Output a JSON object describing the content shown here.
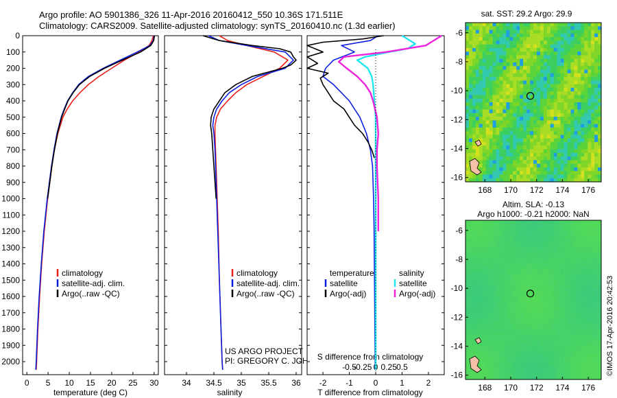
{
  "header": {
    "line1": "Argo profile: AO 5901386_326 11-Apr-2016 20160412_550 10.36S 171.511E",
    "line2": "Climatology: CARS2009. Satellite-adjusted climatology: synTS_20160410.nc (1.3d earlier)"
  },
  "colors": {
    "red": "#e8201a",
    "blue": "#0a1ee0",
    "black": "#000000",
    "cyan": "#22e6ee",
    "magenta": "#ee22dd"
  },
  "chart_data": [
    {
      "type": "line",
      "title": "",
      "xlabel": "temperature (deg C)",
      "ylabel": "",
      "xlim": [
        -1,
        31
      ],
      "ylim": [
        2080,
        0
      ],
      "x_ticks": [
        0,
        5,
        10,
        15,
        20,
        25,
        30
      ],
      "y_ticks": [
        0,
        100,
        200,
        300,
        400,
        500,
        600,
        700,
        800,
        900,
        1000,
        1100,
        1200,
        1300,
        1400,
        1500,
        1600,
        1700,
        1800,
        1900,
        2000
      ],
      "legend": [
        "climatology",
        "satellite-adj. clim.",
        "Argo(..raw -QC)"
      ],
      "series": [
        {
          "name": "climatology",
          "color": "red",
          "depth": [
            0,
            30,
            60,
            100,
            150,
            200,
            250,
            300,
            350,
            400,
            450,
            500,
            600,
            700,
            800,
            1000,
            1200,
            1400,
            1600,
            1800,
            2000,
            2050
          ],
          "values": [
            29.8,
            29.5,
            28.8,
            26.5,
            23,
            20,
            17,
            14.5,
            12.5,
            10.8,
            9.5,
            8.5,
            7.3,
            6.5,
            5.9,
            4.9,
            4.1,
            3.5,
            3.0,
            2.6,
            2.3,
            2.2
          ]
        },
        {
          "name": "satellite-adj. clim.",
          "color": "blue",
          "depth": [
            0,
            30,
            60,
            100,
            150,
            200,
            250,
            300,
            350,
            400,
            450,
            500,
            600,
            700,
            800,
            1000,
            1200,
            1400,
            1600,
            1800,
            2000,
            2050
          ],
          "values": [
            30,
            29.8,
            29,
            26,
            22,
            18,
            14.5,
            12.2,
            10.8,
            9.6,
            8.8,
            8.1,
            7.1,
            6.4,
            5.8,
            4.8,
            4.0,
            3.4,
            2.9,
            2.5,
            2.2,
            2.1
          ]
        },
        {
          "name": "Argo(..raw -QC)",
          "color": "black",
          "depth": [
            0,
            30,
            60,
            100,
            150,
            200,
            250,
            300,
            350,
            400,
            450,
            500,
            600,
            700,
            800,
            1000
          ],
          "values": [
            30.1,
            29.9,
            29.2,
            26.8,
            22.5,
            18.3,
            14.8,
            12.4,
            10.9,
            9.7,
            8.9,
            8.2,
            7.2,
            6.5,
            5.9,
            4.9
          ]
        }
      ]
    },
    {
      "type": "line",
      "title": "",
      "xlabel": "salinity",
      "ylabel": "",
      "xlim": [
        33.6,
        36.1
      ],
      "ylim": [
        2080,
        0
      ],
      "x_ticks": [
        34,
        34.5,
        35,
        35.5,
        36
      ],
      "legend": [
        "climatology",
        "satellite-adj. clim.",
        "Argo(..raw -QC)"
      ],
      "series": [
        {
          "name": "climatology",
          "color": "red",
          "depth": [
            0,
            30,
            60,
            100,
            150,
            200,
            250,
            300,
            350,
            400,
            450,
            500,
            550,
            600,
            700,
            800,
            1000,
            1200,
            1500,
            1800,
            2000,
            2050
          ],
          "values": [
            34.6,
            34.75,
            35.1,
            35.6,
            35.85,
            35.7,
            35.4,
            35.1,
            34.9,
            34.75,
            34.62,
            34.55,
            34.52,
            34.52,
            34.53,
            34.54,
            34.56,
            34.58,
            34.6,
            34.63,
            34.65,
            34.66
          ]
        },
        {
          "name": "satellite-adj. clim.",
          "color": "blue",
          "depth": [
            0,
            30,
            60,
            100,
            150,
            200,
            250,
            300,
            350,
            400,
            450,
            500,
            550,
            600,
            700,
            800,
            1000,
            1200,
            1500,
            1800,
            2000,
            2050
          ],
          "values": [
            34.4,
            34.6,
            35.1,
            35.8,
            35.95,
            35.8,
            35.3,
            35.0,
            34.78,
            34.65,
            34.55,
            34.5,
            34.48,
            34.5,
            34.52,
            34.53,
            34.55,
            34.57,
            34.6,
            34.63,
            34.65,
            34.66
          ]
        },
        {
          "name": "Argo(..raw -QC)",
          "color": "black",
          "depth": [
            0,
            30,
            60,
            80,
            100,
            130,
            150,
            180,
            200,
            250,
            300,
            350,
            400,
            450,
            500,
            550,
            600,
            700,
            800,
            900,
            1000
          ],
          "values": [
            34.3,
            34.6,
            35.2,
            35.7,
            35.9,
            35.95,
            36.0,
            35.9,
            35.75,
            35.2,
            34.9,
            34.7,
            34.6,
            34.5,
            34.45,
            34.44,
            34.46,
            34.48,
            34.5,
            34.52,
            34.54
          ]
        }
      ]
    },
    {
      "type": "line",
      "title": "",
      "xlabel": "T difference from climatology",
      "xlabel_top": "S difference from climatology",
      "xlim": [
        -2.6,
        2.6
      ],
      "ylim": [
        2080,
        0
      ],
      "x_ticks_bottom": [
        -2,
        -1,
        0,
        1,
        2
      ],
      "x_ticks_top": [
        "-0.5",
        "-0.25",
        "0",
        "0.25",
        "0.5"
      ],
      "legend": {
        "temperature": "temperature",
        "salinity": "salinity",
        "temp_sat": "satellite",
        "temp_argo": "Argo(-adj)",
        "sal_sat": "satellite",
        "sal_argo": "Argo(-adj)"
      },
      "series": [
        {
          "name": "temperature satellite",
          "color": "blue",
          "depth": [
            0,
            30,
            60,
            100,
            150,
            200,
            250,
            300,
            350,
            400,
            500,
            600,
            700,
            800,
            1000,
            1200,
            1400,
            1600,
            1800,
            2000,
            2050
          ],
          "values": [
            0.1,
            -0.2,
            -1.3,
            -0.8,
            -1.6,
            -1.9,
            -2.0,
            -1.6,
            -1.3,
            -1.0,
            -0.6,
            -0.35,
            -0.2,
            -0.12,
            -0.08,
            -0.06,
            -0.05,
            -0.04,
            -0.03,
            -0.02,
            -0.02
          ]
        },
        {
          "name": "temperature Argo(-adj)",
          "color": "black",
          "depth": [
            0,
            20,
            40,
            60,
            80,
            100,
            130,
            150,
            170,
            200,
            230,
            260,
            300,
            350,
            400,
            450,
            500,
            550,
            600,
            650,
            700,
            750
          ],
          "values": [
            0.3,
            -0.5,
            -2.0,
            -2.6,
            -2.3,
            -2.0,
            -2.6,
            -2.4,
            -2.2,
            -2.6,
            -1.8,
            -2.1,
            -2.0,
            -1.8,
            -1.6,
            -1.2,
            -1.0,
            -0.8,
            -0.5,
            -0.3,
            -0.15,
            -0.05
          ]
        },
        {
          "name": "salinity satellite",
          "color": "cyan",
          "depth": [
            0,
            50,
            80,
            100,
            130,
            150,
            200,
            250,
            300,
            400,
            500,
            600,
            800,
            1000,
            1200,
            1400,
            1600,
            1800,
            2000,
            2050
          ],
          "values": [
            1.0,
            1.5,
            1.2,
            0.5,
            -0.4,
            -0.7,
            -0.3,
            -0.15,
            -0.1,
            -0.05,
            0,
            0,
            0,
            0,
            0,
            0,
            0,
            0,
            0,
            0
          ]
        },
        {
          "name": "salinity Argo(-adj)",
          "color": "magenta",
          "depth": [
            0,
            30,
            60,
            100,
            130,
            160,
            200,
            250,
            300,
            350,
            400,
            500,
            600,
            700,
            800,
            1000,
            1200
          ],
          "values": [
            2.5,
            2.2,
            1.9,
            0.4,
            -1.2,
            -1.4,
            -1.1,
            -0.7,
            -0.4,
            -0.2,
            -0.1,
            0.05,
            0.1,
            0.05,
            0.05,
            0.1,
            0.1
          ]
        }
      ]
    },
    {
      "type": "heatmap",
      "title": "sat. SST: 29.2 Argo: 29.9",
      "x_ticks": [
        168,
        170,
        172,
        174,
        176
      ],
      "y_ticks": [
        -6,
        -8,
        -10,
        -12,
        -14,
        -16
      ],
      "xlim": [
        166.5,
        177
      ],
      "ylim": [
        -16.3,
        -5.3
      ],
      "marker": {
        "lon": 171.511,
        "lat": -10.36
      }
    },
    {
      "type": "heatmap",
      "title": "Altim. SLA: -0.13",
      "subtitle": "Argo h1000: -0.21 h2000: NaN",
      "x_ticks": [
        168,
        170,
        172,
        174,
        176
      ],
      "y_ticks": [
        -6,
        -8,
        -10,
        -12,
        -14,
        -16
      ],
      "xlim": [
        166.5,
        177
      ],
      "ylim": [
        -16.3,
        -5.3
      ],
      "marker": {
        "lon": 171.511,
        "lat": -10.36
      }
    }
  ],
  "credits": {
    "project": "US ARGO PROJECT",
    "pi": "PI: GREGORY C. JOHNSON",
    "stamp": "©IMOS 17-Apr-2016 20:42:53"
  }
}
